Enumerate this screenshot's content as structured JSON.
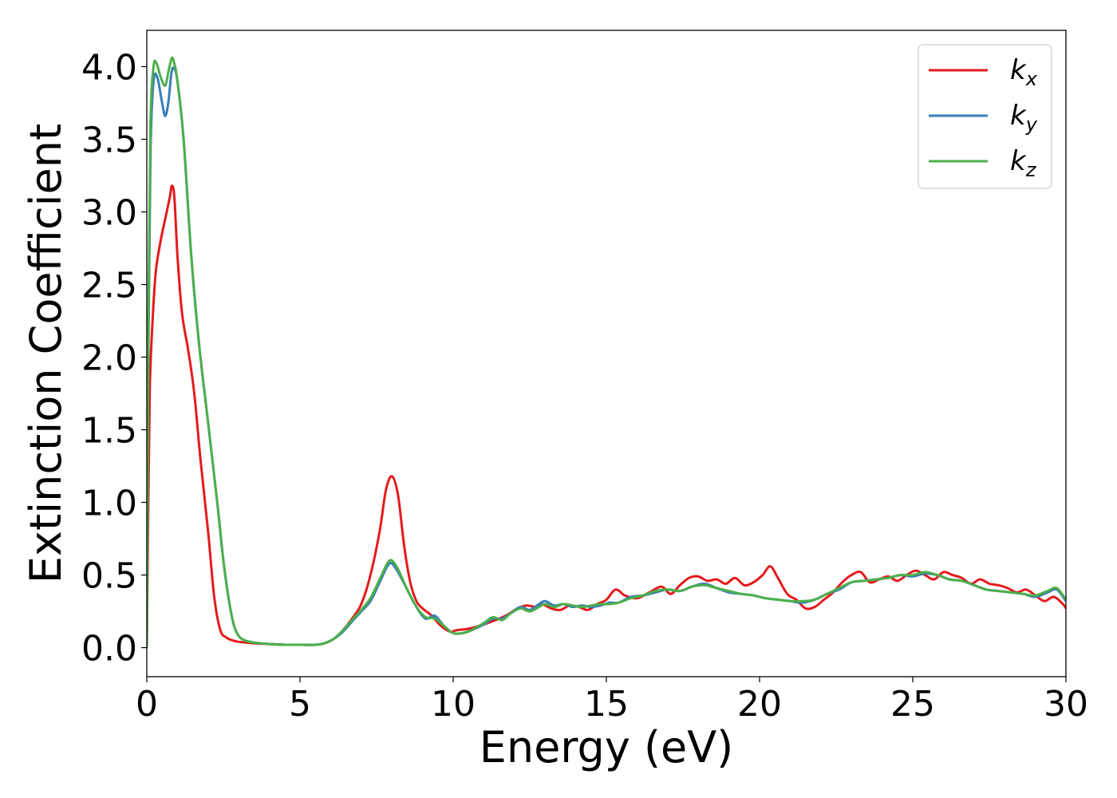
{
  "chart_data": {
    "type": "line",
    "xlabel": "Energy (eV)",
    "ylabel": "Extinction Coefficient",
    "xlim": [
      0,
      30
    ],
    "ylim": [
      -0.2,
      4.25
    ],
    "x_ticks": [
      "0",
      "5",
      "10",
      "15",
      "20",
      "25",
      "30"
    ],
    "x_tick_values": [
      0,
      5,
      10,
      15,
      20,
      25,
      30
    ],
    "y_ticks": [
      "0.0",
      "0.5",
      "1.0",
      "1.5",
      "2.0",
      "2.5",
      "3.0",
      "3.5",
      "4.0"
    ],
    "y_tick_values": [
      0.0,
      0.5,
      1.0,
      1.5,
      2.0,
      2.5,
      3.0,
      3.5,
      4.0
    ],
    "grid": false,
    "legend_position": "top-right",
    "series": [
      {
        "name": "k",
        "subscript": "x",
        "color": "#e41a1c",
        "x": [
          0,
          0.05,
          0.1,
          0.2,
          0.3,
          0.45,
          0.6,
          0.75,
          0.82,
          0.9,
          1.0,
          1.15,
          1.35,
          1.55,
          1.75,
          2.0,
          2.2,
          2.4,
          2.6,
          2.8,
          3.0,
          3.5,
          4.0,
          4.5,
          5.0,
          5.5,
          5.8,
          6.1,
          6.4,
          6.7,
          7.0,
          7.3,
          7.6,
          7.8,
          8.0,
          8.2,
          8.4,
          8.6,
          8.8,
          9.0,
          9.3,
          9.6,
          9.9,
          10.1,
          10.5,
          11.0,
          11.5,
          11.8,
          12.1,
          12.4,
          12.7,
          12.9,
          13.2,
          13.5,
          13.8,
          14.1,
          14.4,
          14.7,
          15.0,
          15.3,
          15.6,
          16.0,
          16.4,
          16.8,
          17.1,
          17.4,
          17.7,
          18.0,
          18.3,
          18.6,
          18.9,
          19.2,
          19.5,
          19.8,
          20.1,
          20.35,
          20.6,
          20.9,
          21.2,
          21.5,
          21.8,
          22.1,
          22.4,
          22.7,
          23.0,
          23.3,
          23.6,
          23.9,
          24.2,
          24.5,
          24.8,
          25.1,
          25.4,
          25.7,
          26.0,
          26.3,
          26.6,
          26.9,
          27.2,
          27.5,
          27.8,
          28.1,
          28.4,
          28.7,
          29.0,
          29.3,
          29.6,
          29.9,
          30.0
        ],
        "y": [
          0.0,
          1.0,
          1.8,
          2.3,
          2.6,
          2.8,
          2.95,
          3.1,
          3.18,
          3.1,
          2.7,
          2.3,
          2.05,
          1.75,
          1.3,
          0.8,
          0.35,
          0.12,
          0.07,
          0.05,
          0.04,
          0.03,
          0.025,
          0.02,
          0.02,
          0.02,
          0.03,
          0.06,
          0.12,
          0.2,
          0.3,
          0.5,
          0.8,
          1.08,
          1.18,
          1.05,
          0.7,
          0.45,
          0.32,
          0.27,
          0.22,
          0.15,
          0.11,
          0.12,
          0.13,
          0.16,
          0.2,
          0.23,
          0.27,
          0.29,
          0.28,
          0.3,
          0.27,
          0.26,
          0.29,
          0.28,
          0.26,
          0.3,
          0.33,
          0.4,
          0.36,
          0.34,
          0.38,
          0.42,
          0.37,
          0.43,
          0.48,
          0.49,
          0.46,
          0.47,
          0.44,
          0.48,
          0.43,
          0.45,
          0.5,
          0.56,
          0.48,
          0.37,
          0.33,
          0.27,
          0.28,
          0.33,
          0.38,
          0.45,
          0.5,
          0.52,
          0.45,
          0.47,
          0.49,
          0.46,
          0.5,
          0.53,
          0.5,
          0.47,
          0.52,
          0.5,
          0.48,
          0.44,
          0.47,
          0.44,
          0.43,
          0.41,
          0.38,
          0.4,
          0.36,
          0.32,
          0.35,
          0.3,
          0.27
        ]
      },
      {
        "name": "k",
        "subscript": "y",
        "color": "#377eb8",
        "x": [
          0,
          0.05,
          0.12,
          0.22,
          0.35,
          0.5,
          0.6,
          0.7,
          0.8,
          0.88,
          1.0,
          1.2,
          1.45,
          1.7,
          2.0,
          2.3,
          2.5,
          2.7,
          2.85,
          3.0,
          3.2,
          3.5,
          4.0,
          4.5,
          5.0,
          5.5,
          5.8,
          6.1,
          6.4,
          6.7,
          7.0,
          7.3,
          7.6,
          7.85,
          8.0,
          8.2,
          8.5,
          8.8,
          9.1,
          9.4,
          9.7,
          10.0,
          10.3,
          10.6,
          11.0,
          11.3,
          11.6,
          11.9,
          12.2,
          12.5,
          12.8,
          13.0,
          13.3,
          13.6,
          13.9,
          14.2,
          14.5,
          14.8,
          15.1,
          15.4,
          15.8,
          16.2,
          16.6,
          17.0,
          17.4,
          17.8,
          18.2,
          18.6,
          19.0,
          19.4,
          19.8,
          20.2,
          20.6,
          21.0,
          21.4,
          21.8,
          22.2,
          22.6,
          23.0,
          23.4,
          23.8,
          24.2,
          24.6,
          25.0,
          25.4,
          25.8,
          26.2,
          26.6,
          27.0,
          27.4,
          27.8,
          28.2,
          28.6,
          29.0,
          29.4,
          29.7,
          30.0
        ],
        "y": [
          0.0,
          2.0,
          3.4,
          3.9,
          3.92,
          3.75,
          3.66,
          3.75,
          3.95,
          3.99,
          3.9,
          3.5,
          2.7,
          2.1,
          1.55,
          1.0,
          0.6,
          0.3,
          0.15,
          0.08,
          0.05,
          0.035,
          0.025,
          0.02,
          0.02,
          0.02,
          0.03,
          0.06,
          0.11,
          0.18,
          0.25,
          0.32,
          0.45,
          0.56,
          0.58,
          0.52,
          0.4,
          0.28,
          0.2,
          0.22,
          0.15,
          0.1,
          0.1,
          0.12,
          0.16,
          0.2,
          0.2,
          0.24,
          0.28,
          0.26,
          0.3,
          0.32,
          0.29,
          0.3,
          0.28,
          0.29,
          0.28,
          0.29,
          0.31,
          0.31,
          0.35,
          0.36,
          0.38,
          0.4,
          0.39,
          0.42,
          0.44,
          0.41,
          0.38,
          0.37,
          0.36,
          0.34,
          0.33,
          0.32,
          0.31,
          0.33,
          0.37,
          0.4,
          0.45,
          0.46,
          0.47,
          0.48,
          0.5,
          0.49,
          0.51,
          0.5,
          0.47,
          0.46,
          0.43,
          0.4,
          0.39,
          0.38,
          0.37,
          0.35,
          0.38,
          0.4,
          0.32
        ]
      },
      {
        "name": "k",
        "subscript": "z",
        "color": "#4daf4a",
        "x": [
          0,
          0.05,
          0.12,
          0.22,
          0.32,
          0.45,
          0.6,
          0.72,
          0.82,
          0.9,
          1.0,
          1.2,
          1.45,
          1.7,
          2.0,
          2.3,
          2.5,
          2.7,
          2.85,
          3.0,
          3.2,
          3.5,
          4.0,
          4.5,
          5.0,
          5.5,
          5.8,
          6.1,
          6.4,
          6.7,
          7.0,
          7.3,
          7.6,
          7.85,
          8.0,
          8.2,
          8.5,
          8.8,
          9.1,
          9.4,
          9.7,
          10.0,
          10.3,
          10.6,
          11.0,
          11.3,
          11.6,
          11.9,
          12.2,
          12.5,
          12.8,
          13.0,
          13.3,
          13.6,
          13.9,
          14.2,
          14.5,
          14.8,
          15.1,
          15.4,
          15.8,
          16.2,
          16.6,
          17.0,
          17.4,
          17.8,
          18.2,
          18.6,
          19.0,
          19.4,
          19.8,
          20.2,
          20.6,
          21.0,
          21.4,
          21.8,
          22.2,
          22.6,
          23.0,
          23.4,
          23.8,
          24.2,
          24.6,
          25.0,
          25.4,
          25.8,
          26.2,
          26.6,
          27.0,
          27.4,
          27.8,
          28.2,
          28.6,
          29.0,
          29.4,
          29.7,
          30.0
        ],
        "y": [
          0.0,
          2.2,
          3.6,
          4.0,
          4.02,
          3.93,
          3.87,
          3.98,
          4.06,
          4.02,
          3.9,
          3.5,
          2.7,
          2.1,
          1.55,
          1.0,
          0.6,
          0.3,
          0.15,
          0.08,
          0.05,
          0.035,
          0.025,
          0.02,
          0.02,
          0.02,
          0.03,
          0.06,
          0.12,
          0.19,
          0.26,
          0.34,
          0.47,
          0.58,
          0.6,
          0.54,
          0.4,
          0.28,
          0.21,
          0.2,
          0.15,
          0.1,
          0.1,
          0.12,
          0.17,
          0.21,
          0.19,
          0.24,
          0.27,
          0.25,
          0.28,
          0.3,
          0.28,
          0.3,
          0.29,
          0.28,
          0.29,
          0.3,
          0.3,
          0.31,
          0.34,
          0.36,
          0.39,
          0.4,
          0.39,
          0.42,
          0.43,
          0.41,
          0.39,
          0.37,
          0.36,
          0.34,
          0.33,
          0.32,
          0.32,
          0.33,
          0.37,
          0.41,
          0.45,
          0.46,
          0.47,
          0.48,
          0.5,
          0.5,
          0.52,
          0.5,
          0.47,
          0.46,
          0.43,
          0.4,
          0.39,
          0.38,
          0.37,
          0.36,
          0.39,
          0.41,
          0.33
        ]
      }
    ]
  }
}
